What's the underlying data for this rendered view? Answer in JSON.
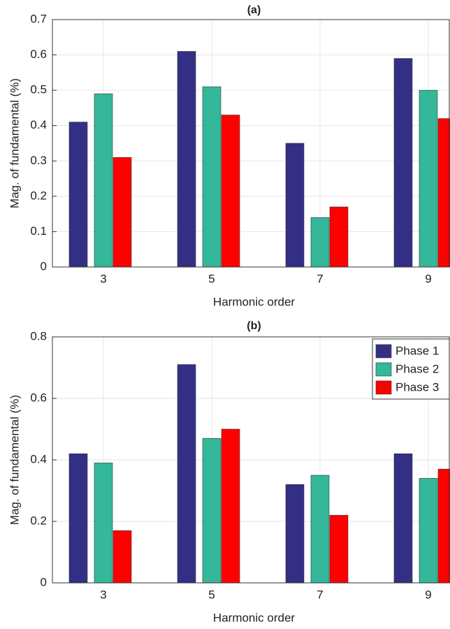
{
  "chart_data": [
    {
      "type": "bar",
      "title": "(a)",
      "xlabel": "Harmonic order",
      "ylabel": "Mag. of fundamental (%)",
      "categories": [
        "3",
        "5",
        "7",
        "9"
      ],
      "series": [
        {
          "color": "#332f85",
          "values": [
            0.41,
            0.61,
            0.35,
            0.59
          ]
        },
        {
          "color": "#35b79a",
          "values": [
            0.49,
            0.51,
            0.14,
            0.5
          ]
        },
        {
          "color": "#ff0000",
          "values": [
            0.31,
            0.43,
            0.17,
            0.42
          ]
        }
      ],
      "ylim": [
        0,
        0.7
      ],
      "yticks": [
        0,
        0.1,
        0.2,
        0.3,
        0.4,
        0.5,
        0.6,
        0.7
      ],
      "grid": true
    },
    {
      "type": "bar",
      "title": "(b)",
      "xlabel": "Harmonic order",
      "ylabel": "Mag. of fundamental (%)",
      "categories": [
        "3",
        "5",
        "7",
        "9"
      ],
      "series": [
        {
          "name": "Phase 1",
          "color": "#332f85",
          "values": [
            0.42,
            0.71,
            0.32,
            0.42
          ]
        },
        {
          "name": "Phase 2",
          "color": "#35b79a",
          "values": [
            0.39,
            0.47,
            0.35,
            0.34
          ]
        },
        {
          "name": "Phase 3",
          "color": "#ff0000",
          "values": [
            0.17,
            0.5,
            0.22,
            0.37
          ]
        }
      ],
      "ylim": [
        0,
        0.8
      ],
      "yticks": [
        0,
        0.2,
        0.4,
        0.6,
        0.8
      ],
      "grid": true,
      "legend": "upper right"
    }
  ]
}
